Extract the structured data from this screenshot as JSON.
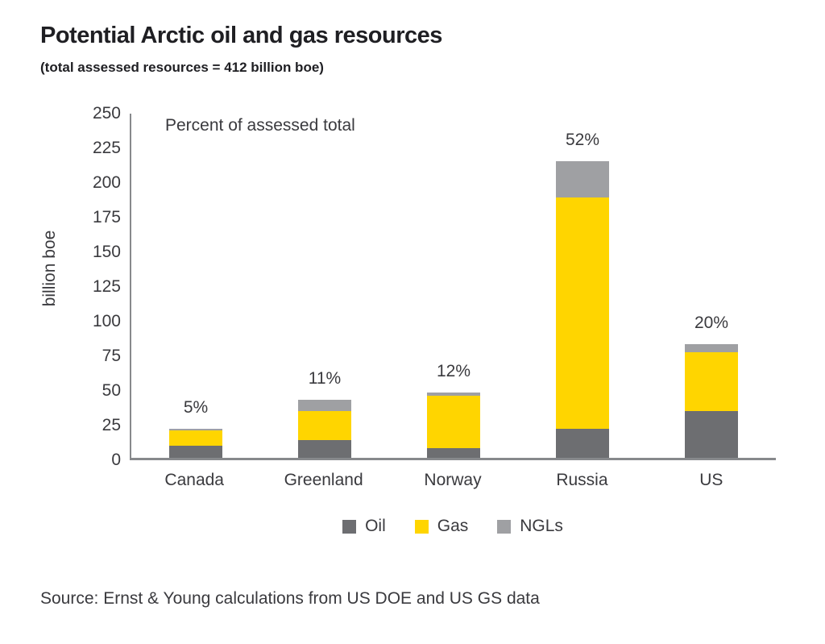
{
  "page": {
    "title": "Potential Arctic oil and gas resources",
    "subtitle": "(total assessed resources = 412 billion boe)",
    "source": "Source: Ernst & Young calculations from US DOE and US GS data"
  },
  "chart_data": {
    "type": "bar",
    "stacked": true,
    "title": "Potential Arctic oil and gas resources",
    "subtitle": "(total assessed resources = 412 billion boe)",
    "annotation": "Percent of assessed total",
    "ylabel": "billion boe",
    "xlabel": "",
    "ylim": [
      0,
      250
    ],
    "ytick_step": 25,
    "grid": false,
    "legend_position": "bottom",
    "categories": [
      "Canada",
      "Greenland",
      "Norway",
      "Russia",
      "US"
    ],
    "series": [
      {
        "name": "Oil",
        "color": "#6d6e71",
        "values": [
          9,
          13,
          7,
          21,
          34
        ]
      },
      {
        "name": "Gas",
        "color": "#ffd500",
        "values": [
          11,
          21,
          38,
          167,
          42
        ]
      },
      {
        "name": "NGLs",
        "color": "#9fa0a3",
        "values": [
          1,
          8,
          2,
          26,
          6
        ]
      }
    ],
    "totals": [
      21,
      42,
      47,
      214,
      82
    ],
    "bar_labels": [
      "5%",
      "11%",
      "12%",
      "52%",
      "20%"
    ],
    "axis_color": "#87898c",
    "total_assessed_boe": 412
  }
}
